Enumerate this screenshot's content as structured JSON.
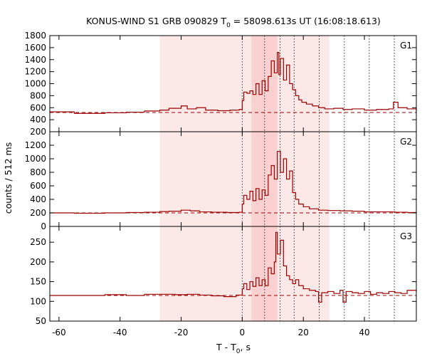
{
  "chart_data": {
    "type": "line",
    "title_main": "KONUS-WIND S1 GRB 090829 T",
    "title_sub": "0",
    "title_rest": " = 58098.613s UT (16:08:18.613)",
    "xlabel_main": "T - T",
    "xlabel_sub": "0",
    "xlabel_rest": ", s",
    "ylabel": "counts / 512 ms",
    "xlim": [
      -63,
      57
    ],
    "xticks": [
      -60,
      -40,
      -20,
      0,
      20,
      40
    ],
    "x_tick_labels": [
      "-60",
      "-40",
      "-20",
      "0",
      "20",
      "40"
    ],
    "background_interval": [
      -27,
      28.5
    ],
    "source_interval": [
      3,
      11.5
    ],
    "vertical_markers": [
      0,
      7.3,
      12.4,
      17.0,
      25.2,
      33.4,
      41.6,
      49.8
    ],
    "colors": {
      "curve": "#9b0000",
      "background_band": "#fde8e8",
      "source_band": "#fbd0d0"
    },
    "panels": [
      {
        "name": "G1",
        "ylim": [
          200,
          1800
        ],
        "yticks": [
          200,
          400,
          600,
          800,
          1000,
          1200,
          1400,
          1600,
          1800
        ],
        "y_tick_labels": [
          "200",
          "400",
          "600",
          "800",
          "1000",
          "1200",
          "1400",
          "1600",
          "1800"
        ],
        "background_level": 520,
        "points": [
          [
            -63,
            530
          ],
          [
            -55,
            505
          ],
          [
            -45,
            515
          ],
          [
            -38,
            525
          ],
          [
            -32,
            545
          ],
          [
            -27,
            560
          ],
          [
            -24,
            590
          ],
          [
            -20,
            630
          ],
          [
            -18,
            580
          ],
          [
            -15,
            600
          ],
          [
            -12,
            560
          ],
          [
            -8,
            550
          ],
          [
            -4,
            560
          ],
          [
            -1,
            570
          ],
          [
            0,
            720
          ],
          [
            0.5,
            860
          ],
          [
            1.5,
            840
          ],
          [
            2.5,
            880
          ],
          [
            3.5,
            820
          ],
          [
            4.5,
            1000
          ],
          [
            5.5,
            820
          ],
          [
            6.5,
            1050
          ],
          [
            7.5,
            880
          ],
          [
            8.5,
            1120
          ],
          [
            9.5,
            1380
          ],
          [
            10.5,
            1180
          ],
          [
            11.5,
            1520
          ],
          [
            12,
            1150
          ],
          [
            12.5,
            1420
          ],
          [
            13.5,
            1060
          ],
          [
            14.5,
            1310
          ],
          [
            15.5,
            1000
          ],
          [
            16.5,
            900
          ],
          [
            17.5,
            800
          ],
          [
            18.5,
            730
          ],
          [
            19.5,
            690
          ],
          [
            21,
            660
          ],
          [
            23,
            630
          ],
          [
            25,
            600
          ],
          [
            27,
            580
          ],
          [
            30,
            590
          ],
          [
            33,
            570
          ],
          [
            36,
            580
          ],
          [
            40,
            560
          ],
          [
            44,
            570
          ],
          [
            48,
            580
          ],
          [
            49.5,
            690
          ],
          [
            51,
            600
          ],
          [
            54,
            580
          ],
          [
            57,
            540
          ]
        ]
      },
      {
        "name": "G2",
        "ylim": [
          0,
          1400
        ],
        "yticks": [
          0,
          200,
          400,
          600,
          800,
          1000,
          1200
        ],
        "y_tick_labels": [
          "0",
          "200",
          "400",
          "600",
          "800",
          "1000",
          "1200"
        ],
        "background_level": 200,
        "points": [
          [
            -63,
            200
          ],
          [
            -55,
            195
          ],
          [
            -45,
            200
          ],
          [
            -38,
            205
          ],
          [
            -32,
            210
          ],
          [
            -27,
            220
          ],
          [
            -24,
            225
          ],
          [
            -20,
            240
          ],
          [
            -17,
            230
          ],
          [
            -14,
            215
          ],
          [
            -10,
            210
          ],
          [
            -5,
            205
          ],
          [
            -1,
            210
          ],
          [
            0,
            330
          ],
          [
            0.5,
            460
          ],
          [
            1.5,
            400
          ],
          [
            2.5,
            520
          ],
          [
            3.5,
            380
          ],
          [
            4.5,
            560
          ],
          [
            5.5,
            400
          ],
          [
            6.5,
            540
          ],
          [
            7.5,
            460
          ],
          [
            8.5,
            760
          ],
          [
            9.5,
            900
          ],
          [
            10.5,
            700
          ],
          [
            11.5,
            1110
          ],
          [
            12.5,
            800
          ],
          [
            13.5,
            1000
          ],
          [
            14.5,
            700
          ],
          [
            15.5,
            820
          ],
          [
            16.5,
            500
          ],
          [
            17.5,
            400
          ],
          [
            18.5,
            330
          ],
          [
            20,
            290
          ],
          [
            22,
            260
          ],
          [
            25,
            240
          ],
          [
            28,
            235
          ],
          [
            32,
            230
          ],
          [
            36,
            225
          ],
          [
            40,
            215
          ],
          [
            45,
            215
          ],
          [
            50,
            210
          ],
          [
            54,
            205
          ],
          [
            57,
            200
          ]
        ]
      },
      {
        "name": "G3",
        "ylim": [
          50,
          290
        ],
        "yticks": [
          50,
          100,
          150,
          200,
          250
        ],
        "y_tick_labels": [
          "50",
          "100",
          "150",
          "200",
          "250"
        ],
        "background_level": 115,
        "points": [
          [
            -63,
            115
          ],
          [
            -55,
            115
          ],
          [
            -45,
            117
          ],
          [
            -38,
            115
          ],
          [
            -32,
            118
          ],
          [
            -27,
            118
          ],
          [
            -22,
            117
          ],
          [
            -18,
            118
          ],
          [
            -14,
            116
          ],
          [
            -10,
            114
          ],
          [
            -6,
            112
          ],
          [
            -2,
            116
          ],
          [
            0,
            132
          ],
          [
            0.5,
            145
          ],
          [
            1.5,
            130
          ],
          [
            2.5,
            150
          ],
          [
            3.5,
            138
          ],
          [
            4.5,
            160
          ],
          [
            5.5,
            140
          ],
          [
            6.5,
            155
          ],
          [
            7.5,
            140
          ],
          [
            8.5,
            185
          ],
          [
            9.5,
            170
          ],
          [
            10.5,
            200
          ],
          [
            11,
            275
          ],
          [
            11.5,
            220
          ],
          [
            12.5,
            255
          ],
          [
            13.5,
            190
          ],
          [
            14.5,
            165
          ],
          [
            15.5,
            155
          ],
          [
            16.5,
            145
          ],
          [
            17.5,
            155
          ],
          [
            18.5,
            140
          ],
          [
            20,
            132
          ],
          [
            22,
            128
          ],
          [
            24,
            125
          ],
          [
            25,
            98
          ],
          [
            26,
            122
          ],
          [
            28,
            125
          ],
          [
            30,
            120
          ],
          [
            32,
            128
          ],
          [
            33,
            98
          ],
          [
            34,
            125
          ],
          [
            36,
            122
          ],
          [
            38,
            120
          ],
          [
            40,
            125
          ],
          [
            42,
            118
          ],
          [
            44,
            122
          ],
          [
            46,
            120
          ],
          [
            48,
            125
          ],
          [
            50,
            122
          ],
          [
            52,
            120
          ],
          [
            54,
            128
          ],
          [
            57,
            125
          ]
        ]
      }
    ]
  }
}
